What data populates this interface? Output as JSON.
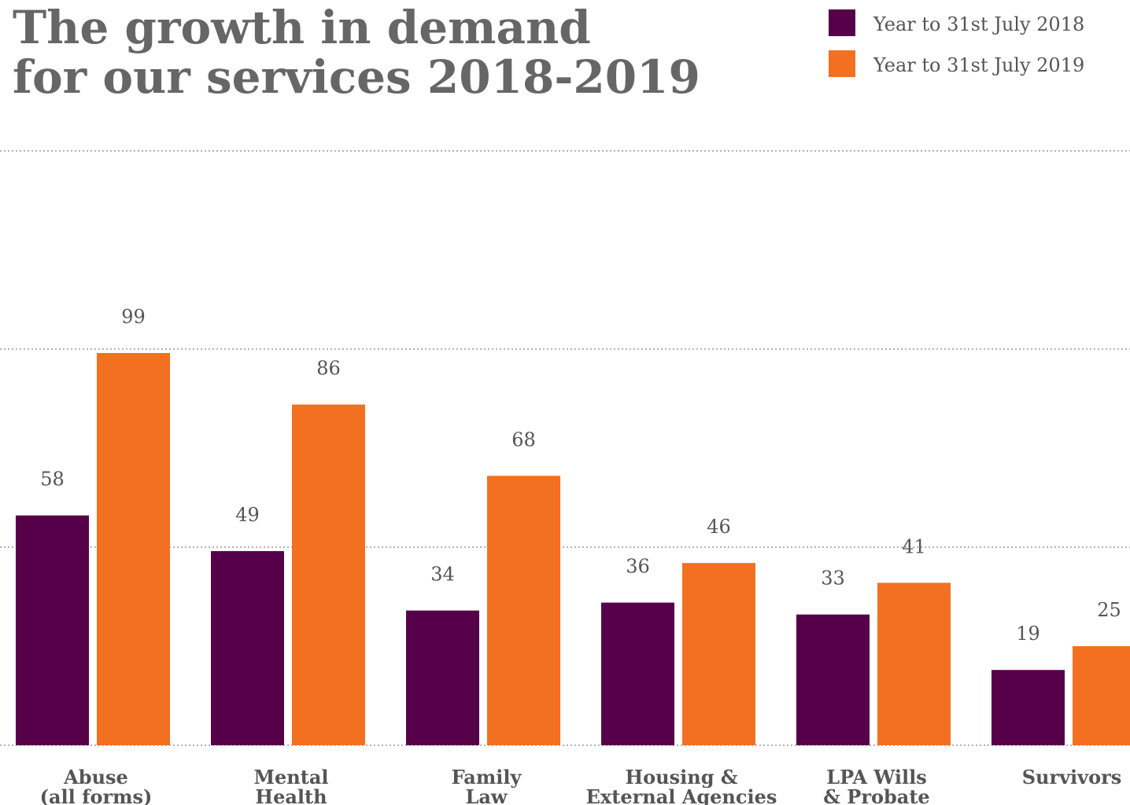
{
  "chart_data": {
    "type": "bar",
    "title": "The growth in demand\nfor our services 2018-2019",
    "categories": [
      "Abuse\n(all forms)",
      "Mental\nHealth",
      "Family\nLaw",
      "Housing &\nExternal Agencies",
      "LPA Wills\n& Probate",
      "Survivors"
    ],
    "series": [
      {
        "name": "Year to 31st July 2018",
        "color": "#560049",
        "values": [
          58,
          49,
          34,
          36,
          33,
          19
        ]
      },
      {
        "name": "Year to 31st July 2019",
        "color": "#f37021",
        "values": [
          99,
          86,
          68,
          46,
          41,
          25
        ]
      }
    ],
    "ylim": [
      0,
      150
    ],
    "yticks": [
      0,
      50,
      100,
      150
    ],
    "grid": true,
    "legend": "top-right"
  }
}
